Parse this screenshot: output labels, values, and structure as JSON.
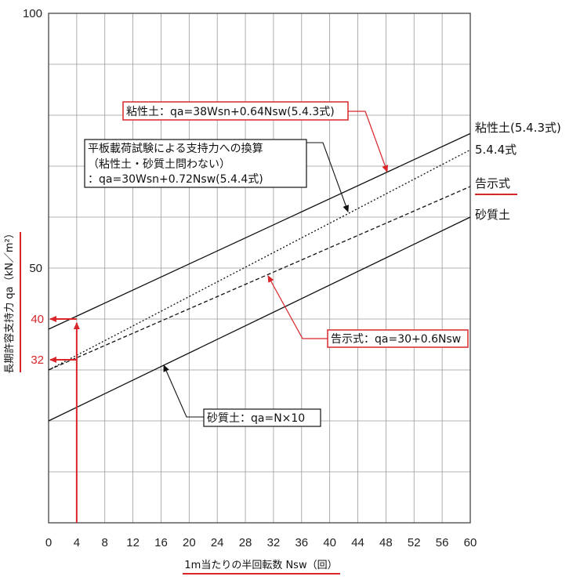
{
  "chart_data": {
    "type": "line",
    "xlabel": "1m当たりの半回転数 Nsw（回）",
    "ylabel": "長期許容支持力 qa（kN／m²）",
    "x_ticks": [
      0,
      4,
      8,
      12,
      16,
      20,
      24,
      28,
      32,
      36,
      40,
      44,
      48,
      52,
      56,
      60
    ],
    "x_tick_labels": [
      "0",
      "4",
      "8",
      "12",
      "16",
      "20",
      "24",
      "28",
      "32",
      "36",
      "40",
      "44",
      "48",
      "52",
      "56",
      "60"
    ],
    "y_tick_labels": [
      "100",
      "50"
    ],
    "y_ticks": [
      100,
      50
    ],
    "xlim": [
      0,
      60
    ],
    "ylim": [
      0,
      100
    ],
    "grid": true,
    "series": [
      {
        "name": "粘性土(5.4.3式)",
        "style": "solid",
        "x": [
          0,
          60
        ],
        "y": [
          38,
          76.4
        ]
      },
      {
        "name": "5.4.4式",
        "style": "dotted",
        "x": [
          0,
          60
        ],
        "y": [
          30,
          73.2
        ]
      },
      {
        "name": "告示式",
        "style": "dashed",
        "x": [
          0,
          60
        ],
        "y": [
          30,
          66
        ]
      },
      {
        "name": "砂質土",
        "style": "solid",
        "x": [
          0,
          60
        ],
        "y": [
          20,
          60
        ]
      }
    ],
    "annotations": {
      "clay": "粘性土：qa=38Wsn+0.64Nsw(5.4.3式)",
      "plate_line1": "平板載荷試験による支持力への換算",
      "plate_line2": "（粘性土・砂質土問わない）",
      "plate_line3": "：qa=30Wsn+0.72Nsw(5.4.4式)",
      "notice": "告示式：qa=30+0.6Nsw",
      "sand": "砂質土：qa=N×10"
    },
    "marker_values": [
      {
        "label": "40",
        "y": 40,
        "x": 4
      },
      {
        "label": "32",
        "y": 32,
        "x": 4
      }
    ],
    "colors": {
      "red": "#d8262b",
      "line": "#111111",
      "grid": "#9a9a9a"
    }
  }
}
